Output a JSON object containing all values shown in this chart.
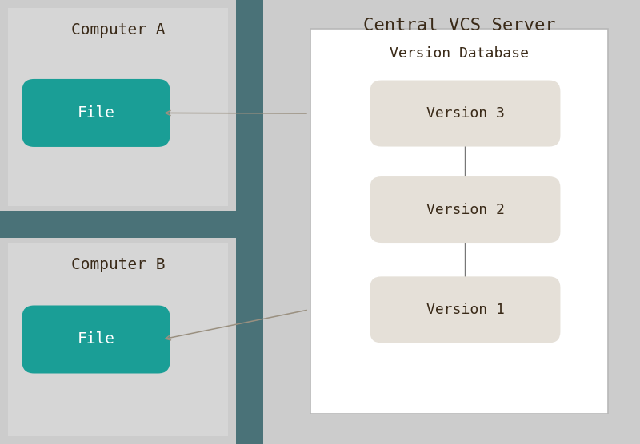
{
  "bg_color": "#cccccc",
  "teal_color": "#1a9e96",
  "light_beige": "#e5e0d8",
  "white": "#ffffff",
  "comp_box_color": "#d6d6d6",
  "dark_teal": "#4a7278",
  "text_dark": "#3a2a18",
  "arrow_color": "#9a9080",
  "computer_a_label": "Computer A",
  "computer_b_label": "Computer B",
  "server_label": "Central VCS Server",
  "db_label": "Version Database",
  "file_label": "File",
  "versions": [
    "Version 3",
    "Version 2",
    "Version 1"
  ],
  "figw": 8.0,
  "figh": 5.56,
  "dpi": 100
}
